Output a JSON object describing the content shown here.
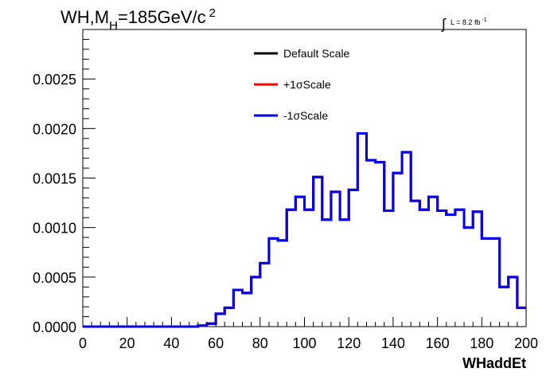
{
  "chart_data": {
    "type": "line",
    "title_main": "WH,M",
    "title_sub": "H",
    "title_rest": "=185GeV/c",
    "title_sup": "2",
    "lumi_integral": "∫",
    "lumi_label": "L = 8.2 fb",
    "lumi_sup": "-1",
    "xlabel": "WHaddEt",
    "ylabel": "",
    "xlim": [
      0,
      200
    ],
    "ylim": [
      0,
      0.003
    ],
    "x_ticks": [
      0,
      20,
      40,
      60,
      80,
      100,
      120,
      140,
      160,
      180,
      200
    ],
    "x_tick_labels": [
      "0",
      "20",
      "40",
      "60",
      "80",
      "100",
      "120",
      "140",
      "160",
      "180",
      "200"
    ],
    "y_ticks": [
      0,
      0.0005,
      0.001,
      0.0015,
      0.002,
      0.0025
    ],
    "y_tick_labels": [
      "0.0000",
      "0.0005",
      "0.0010",
      "0.0015",
      "0.0020",
      "0.0025"
    ],
    "bin_edges": [
      0,
      4,
      8,
      12,
      16,
      20,
      24,
      28,
      32,
      36,
      40,
      44,
      48,
      52,
      56,
      60,
      64,
      68,
      72,
      76,
      80,
      84,
      88,
      92,
      96,
      100,
      104,
      108,
      112,
      116,
      120,
      124,
      128,
      132,
      136,
      140,
      144,
      148,
      152,
      156,
      160,
      164,
      168,
      172,
      176,
      180,
      184,
      188,
      192,
      196,
      200
    ],
    "series": [
      {
        "name": "Default Scale",
        "color": "#000000",
        "values": [
          0,
          0,
          0,
          0,
          0,
          0,
          0,
          0,
          0,
          0,
          0,
          0,
          0,
          1e-05,
          3e-05,
          0.00013,
          0.00019,
          0.00037,
          0.00034,
          0.0005,
          0.00064,
          0.00089,
          0.00087,
          0.00118,
          0.00131,
          0.00118,
          0.00151,
          0.00108,
          0.00136,
          0.00108,
          0.00138,
          0.00195,
          0.00168,
          0.00166,
          0.00117,
          0.00155,
          0.00176,
          0.00127,
          0.00118,
          0.00131,
          0.00117,
          0.00113,
          0.00118,
          0.001,
          0.00116,
          0.00089,
          0.00089,
          0.0004,
          0.0005,
          0.00019
        ]
      },
      {
        "name": "+1σScale",
        "color": "#ff0000",
        "values": [
          0,
          0,
          0,
          0,
          0,
          0,
          0,
          0,
          0,
          0,
          0,
          0,
          0,
          1e-05,
          3e-05,
          0.00013,
          0.00019,
          0.00037,
          0.00034,
          0.0005,
          0.00064,
          0.00089,
          0.00087,
          0.00118,
          0.00131,
          0.00118,
          0.00151,
          0.00108,
          0.00136,
          0.00108,
          0.00138,
          0.00195,
          0.00168,
          0.00166,
          0.00117,
          0.00155,
          0.00176,
          0.00127,
          0.00118,
          0.00131,
          0.00117,
          0.00113,
          0.00118,
          0.001,
          0.00116,
          0.00089,
          0.00089,
          0.0004,
          0.0005,
          0.00019
        ]
      },
      {
        "name": "-1σScale",
        "color": "#0000ee",
        "values": [
          0,
          0,
          0,
          0,
          0,
          0,
          0,
          0,
          0,
          0,
          0,
          0,
          0,
          1e-05,
          3e-05,
          0.00013,
          0.00019,
          0.00037,
          0.00034,
          0.0005,
          0.00064,
          0.00089,
          0.00087,
          0.00118,
          0.00131,
          0.00118,
          0.00151,
          0.00108,
          0.00136,
          0.00108,
          0.00138,
          0.00195,
          0.00168,
          0.00166,
          0.00117,
          0.00155,
          0.00176,
          0.00127,
          0.00118,
          0.00131,
          0.00117,
          0.00113,
          0.00118,
          0.001,
          0.00116,
          0.00089,
          0.00089,
          0.0004,
          0.0005,
          0.00019
        ]
      }
    ],
    "legend_position": "top-center",
    "grid": false
  }
}
